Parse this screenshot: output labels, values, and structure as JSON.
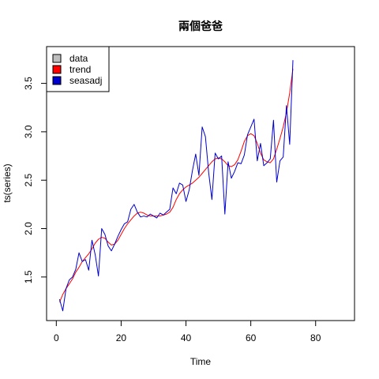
{
  "chart_data": {
    "type": "line",
    "title": "兩個爸爸",
    "xlabel": "Time",
    "ylabel": "ts(series)",
    "xlim": [
      -3,
      92
    ],
    "ylim": [
      1.05,
      3.88
    ],
    "xticks": [
      0,
      20,
      40,
      60,
      80
    ],
    "yticks": [
      1.5,
      2.0,
      2.5,
      3.0,
      3.5
    ],
    "xtick_labels": [
      "0",
      "20",
      "40",
      "60",
      "80"
    ],
    "ytick_labels": [
      "1.5",
      "2.0",
      "2.5",
      "3.0",
      "3.5"
    ],
    "grid": false,
    "legend_position": "top-left",
    "legend": [
      {
        "label": "data",
        "color": "#bebebe"
      },
      {
        "label": "trend",
        "color": "#ff0000"
      },
      {
        "label": "seasadj",
        "color": "#0000cd"
      }
    ],
    "x": [
      1,
      2,
      3,
      4,
      5,
      6,
      7,
      8,
      9,
      10,
      11,
      12,
      13,
      14,
      15,
      16,
      17,
      18,
      19,
      20,
      21,
      22,
      23,
      24,
      25,
      26,
      27,
      28,
      29,
      30,
      31,
      32,
      33,
      34,
      35,
      36,
      37,
      38,
      39,
      40,
      41,
      42,
      43,
      44,
      45,
      46,
      47,
      48,
      49,
      50,
      51,
      52,
      53,
      54,
      55,
      56,
      57,
      58,
      59,
      60,
      61,
      62,
      63,
      64,
      65,
      66,
      67,
      68,
      69,
      70,
      71,
      72,
      73
    ],
    "series": [
      {
        "name": "trend",
        "color": "#ff0000",
        "values": [
          1.24,
          1.32,
          1.38,
          1.43,
          1.48,
          1.55,
          1.6,
          1.66,
          1.7,
          1.74,
          1.79,
          1.85,
          1.89,
          1.91,
          1.9,
          1.86,
          1.83,
          1.84,
          1.88,
          1.94,
          2.0,
          2.05,
          2.09,
          2.13,
          2.16,
          2.17,
          2.16,
          2.14,
          2.13,
          2.13,
          2.13,
          2.13,
          2.14,
          2.15,
          2.17,
          2.22,
          2.3,
          2.36,
          2.4,
          2.43,
          2.45,
          2.47,
          2.5,
          2.53,
          2.57,
          2.61,
          2.65,
          2.69,
          2.72,
          2.73,
          2.72,
          2.69,
          2.65,
          2.64,
          2.66,
          2.71,
          2.8,
          2.9,
          2.96,
          2.98,
          2.96,
          2.88,
          2.78,
          2.71,
          2.69,
          2.68,
          2.72,
          2.82,
          2.93,
          3.05,
          3.2,
          3.4,
          3.65
        ]
      },
      {
        "name": "seasadj",
        "color": "#0000cd",
        "values": [
          1.27,
          1.15,
          1.38,
          1.47,
          1.5,
          1.58,
          1.75,
          1.66,
          1.68,
          1.57,
          1.88,
          1.73,
          1.51,
          2.0,
          1.94,
          1.82,
          1.77,
          1.84,
          1.92,
          1.99,
          2.05,
          2.07,
          2.2,
          2.25,
          2.17,
          2.12,
          2.13,
          2.12,
          2.15,
          2.13,
          2.11,
          2.16,
          2.14,
          2.17,
          2.2,
          2.42,
          2.36,
          2.47,
          2.45,
          2.28,
          2.4,
          2.6,
          2.77,
          2.55,
          3.05,
          2.95,
          2.58,
          2.3,
          2.78,
          2.72,
          2.75,
          2.15,
          2.69,
          2.52,
          2.59,
          2.68,
          2.67,
          2.76,
          2.97,
          3.05,
          3.13,
          2.7,
          2.88,
          2.65,
          2.68,
          2.72,
          3.12,
          2.48,
          2.7,
          2.74,
          3.27,
          2.87,
          3.74
        ]
      }
    ]
  }
}
